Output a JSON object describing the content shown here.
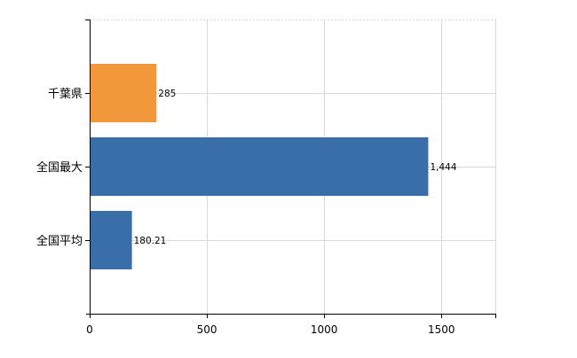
{
  "chart_data": {
    "type": "bar",
    "orientation": "horizontal",
    "categories": [
      "千葉県",
      "全国最大",
      "全国平均"
    ],
    "values": [
      285,
      1444,
      180.21
    ],
    "data_labels": [
      "285",
      "1,444",
      "180.21"
    ],
    "bar_colors": [
      "#f0983a",
      "#3a6ea8",
      "#3a6ea8"
    ],
    "xlim": [
      0,
      1730
    ],
    "x_ticks": [
      0,
      500,
      1000,
      1500
    ],
    "x_tick_labels": [
      "0",
      "500",
      "1000",
      "1500"
    ],
    "grid": true,
    "legend": "none",
    "title": "",
    "xlabel": "",
    "ylabel": ""
  }
}
